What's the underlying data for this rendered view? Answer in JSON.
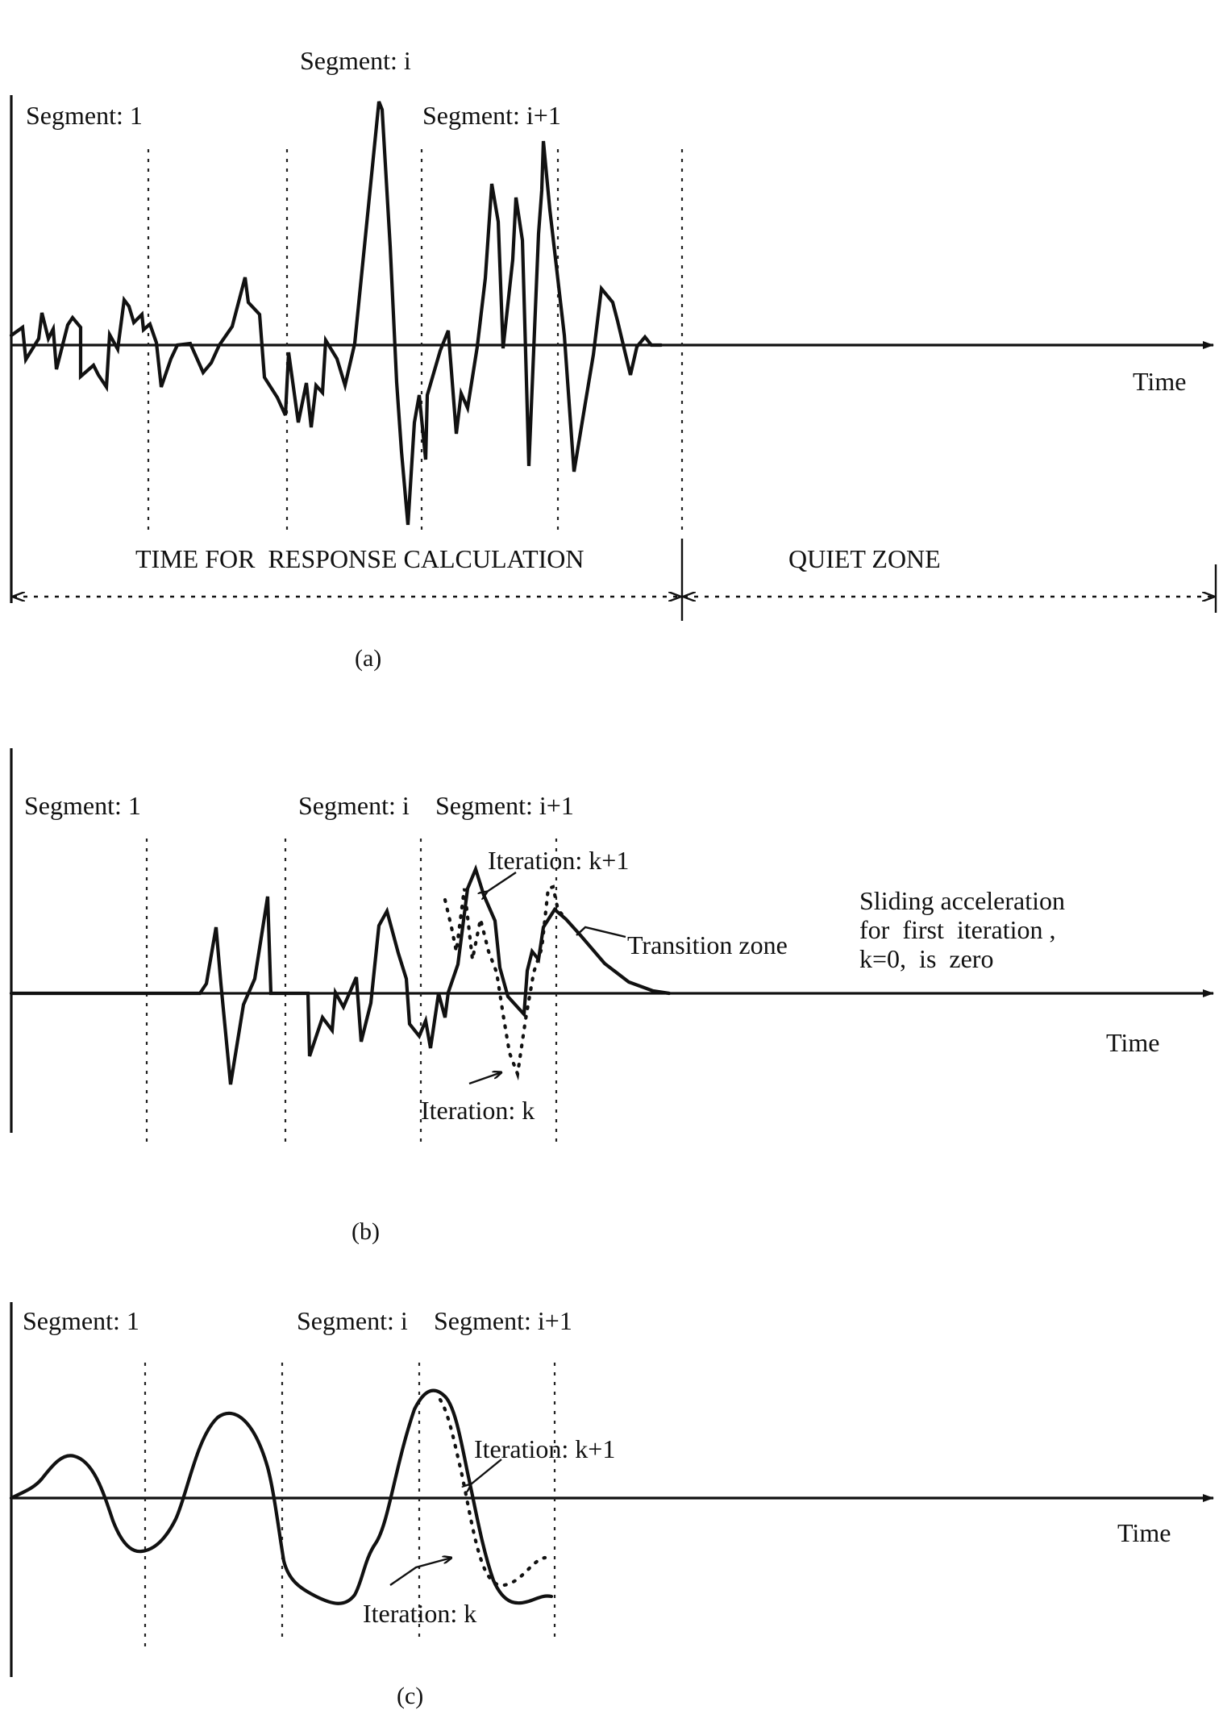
{
  "panel_a": {
    "segment_1": "Segment: 1",
    "segment_i": "Segment: i",
    "segment_i1": "Segment: i+1",
    "time": "Time",
    "response_zone": "TIME FOR  RESPONSE CALCULATION",
    "quiet_zone": "QUIET ZONE",
    "caption": "(a)"
  },
  "panel_b": {
    "segment_1": "Segment: 1",
    "segment_i": "Segment: i",
    "segment_i1": "Segment: i+1",
    "iteration_k1": "Iteration: k+1",
    "iteration_k": "Iteration: k",
    "transition_zone": "Transition zone",
    "note_line1": "Sliding acceleration",
    "note_line2": "for  first  iteration ,",
    "note_line3": "k=0,  is  zero",
    "time": "Time",
    "caption": "(b)"
  },
  "panel_c": {
    "segment_1": "Segment: 1",
    "segment_i": "Segment: i",
    "segment_i1": "Segment: i+1",
    "iteration_k1": "Iteration: k+1",
    "iteration_k": "Iteration: k",
    "time": "Time",
    "caption": "(c)"
  }
}
